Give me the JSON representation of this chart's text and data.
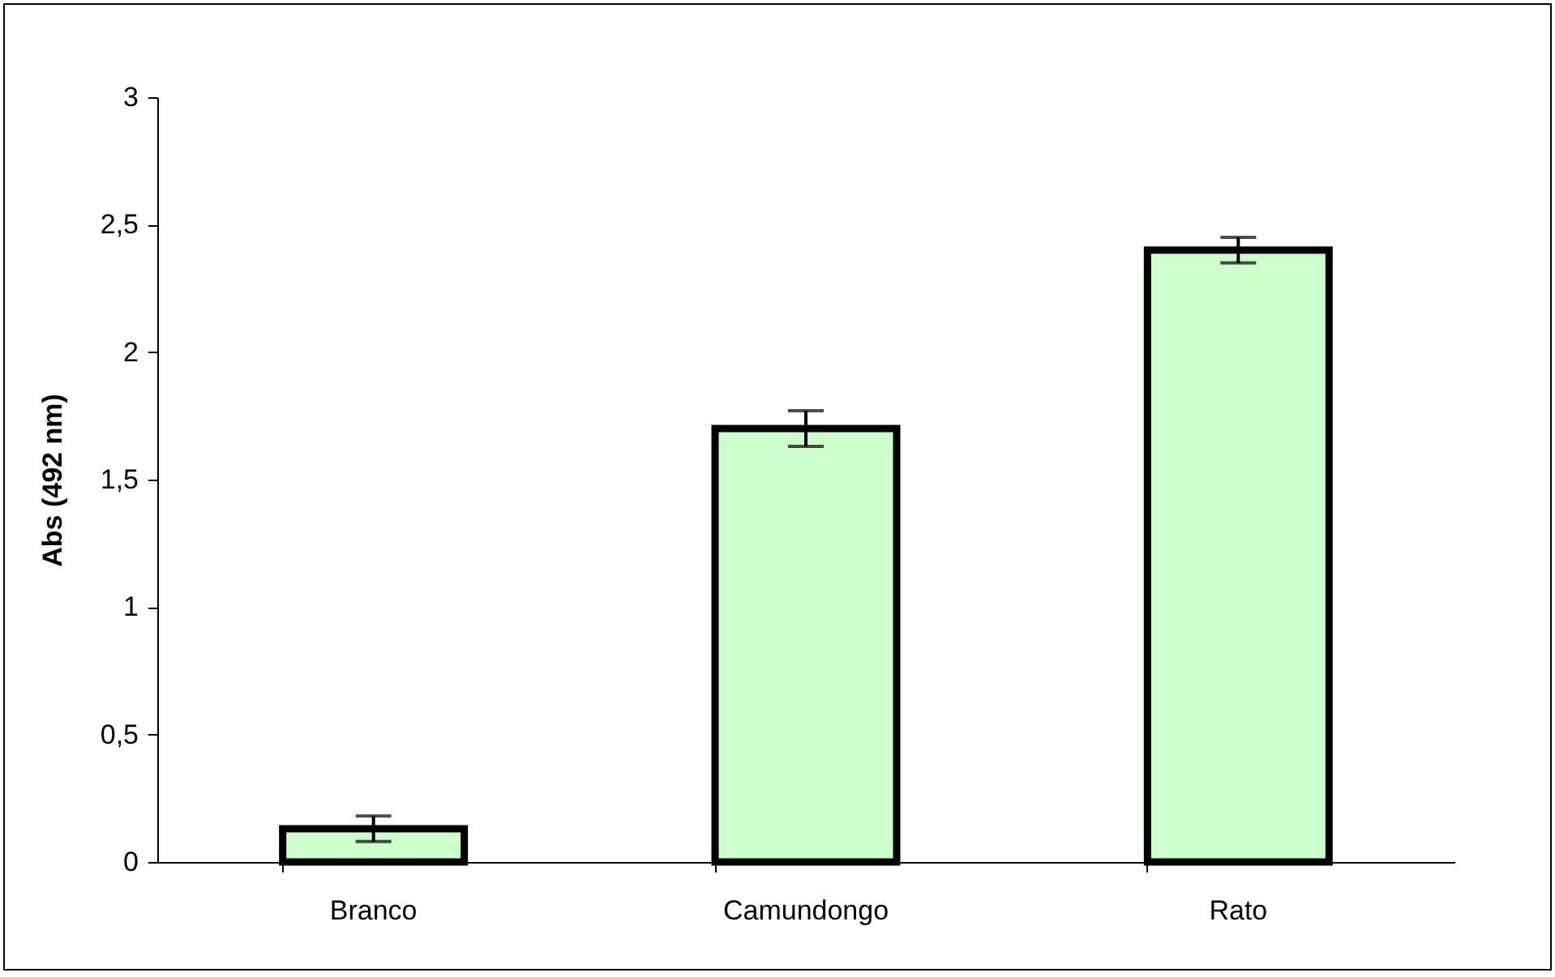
{
  "chart_data": {
    "type": "bar",
    "ylabel": "Abs (492 nm)",
    "categories": [
      "Branco",
      "Camundongo",
      "Rato"
    ],
    "values": [
      0.13,
      1.7,
      2.4
    ],
    "errors": [
      0.05,
      0.07,
      0.05
    ],
    "color": "#ccffcc",
    "ylim": [
      0,
      3
    ],
    "yticks": [
      0,
      {
        "value": 0.5,
        "label": "0,5"
      },
      1,
      {
        "value": 1.5,
        "label": "1,5"
      },
      2,
      {
        "value": 2.5,
        "label": "2,5"
      },
      3
    ],
    "grid": false
  }
}
